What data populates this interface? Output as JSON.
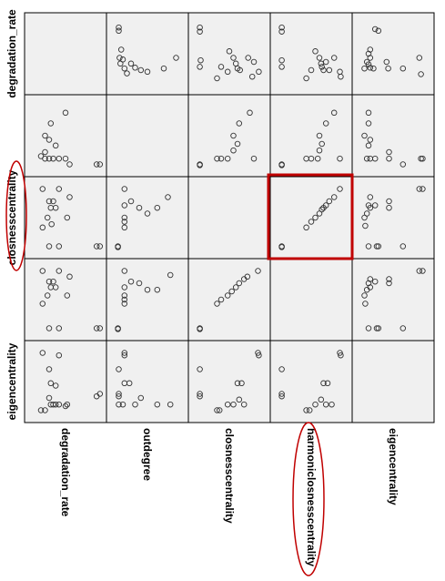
{
  "chart_data": {
    "type": "scatter-matrix",
    "row_labels": [
      "degradation_rate",
      "",
      "closnesscentrality",
      "",
      "eigencentrality"
    ],
    "col_labels": [
      "degradation_rate",
      "outdegree",
      "closnesscentrality",
      "harmoniclosnesscentrality",
      "eigencentrality"
    ],
    "grid": false,
    "background_color": "#f0f0f0",
    "point_color": "#333333",
    "highlight_color": "#c00000",
    "highlight_cell": {
      "row": 2,
      "col": 3
    },
    "circled_labels": [
      "row:closnesscentrality",
      "col:harmoniclosnesscentrality"
    ],
    "cells": [
      {
        "row": 0,
        "col": 1,
        "points": [
          [
            0.15,
            0.18
          ],
          [
            0.15,
            0.22
          ],
          [
            0.18,
            0.45
          ],
          [
            0.16,
            0.55
          ],
          [
            0.17,
            0.62
          ],
          [
            0.2,
            0.57
          ],
          [
            0.22,
            0.68
          ],
          [
            0.25,
            0.74
          ],
          [
            0.3,
            0.62
          ],
          [
            0.35,
            0.67
          ],
          [
            0.42,
            0.7
          ],
          [
            0.5,
            0.72
          ],
          [
            0.7,
            0.68
          ],
          [
            0.85,
            0.55
          ]
        ]
      },
      {
        "row": 0,
        "col": 2,
        "points": [
          [
            0.14,
            0.18
          ],
          [
            0.14,
            0.23
          ],
          [
            0.15,
            0.58
          ],
          [
            0.14,
            0.66
          ],
          [
            0.35,
            0.8
          ],
          [
            0.4,
            0.66
          ],
          [
            0.48,
            0.72
          ],
          [
            0.5,
            0.47
          ],
          [
            0.55,
            0.55
          ],
          [
            0.58,
            0.62
          ],
          [
            0.6,
            0.68
          ],
          [
            0.63,
            0.7
          ],
          [
            0.73,
            0.55
          ],
          [
            0.78,
            0.78
          ],
          [
            0.8,
            0.6
          ],
          [
            0.86,
            0.72
          ]
        ]
      },
      {
        "row": 0,
        "col": 3,
        "points": [
          [
            0.14,
            0.18
          ],
          [
            0.14,
            0.23
          ],
          [
            0.14,
            0.58
          ],
          [
            0.14,
            0.66
          ],
          [
            0.44,
            0.8
          ],
          [
            0.5,
            0.7
          ],
          [
            0.55,
            0.47
          ],
          [
            0.6,
            0.55
          ],
          [
            0.62,
            0.62
          ],
          [
            0.63,
            0.66
          ],
          [
            0.65,
            0.7
          ],
          [
            0.68,
            0.6
          ],
          [
            0.72,
            0.7
          ],
          [
            0.78,
            0.55
          ],
          [
            0.85,
            0.72
          ],
          [
            0.86,
            0.78
          ]
        ]
      },
      {
        "row": 0,
        "col": 4,
        "points": [
          [
            0.28,
            0.2
          ],
          [
            0.32,
            0.22
          ],
          [
            0.22,
            0.45
          ],
          [
            0.2,
            0.5
          ],
          [
            0.22,
            0.55
          ],
          [
            0.18,
            0.6
          ],
          [
            0.2,
            0.63
          ],
          [
            0.22,
            0.67
          ],
          [
            0.26,
            0.68
          ],
          [
            0.15,
            0.68
          ],
          [
            0.42,
            0.6
          ],
          [
            0.44,
            0.68
          ],
          [
            0.62,
            0.68
          ],
          [
            0.82,
            0.55
          ],
          [
            0.84,
            0.75
          ]
        ]
      },
      {
        "row": 1,
        "col": 0,
        "points": [
          [
            0.32,
            0.35
          ],
          [
            0.5,
            0.22
          ],
          [
            0.25,
            0.5
          ],
          [
            0.3,
            0.55
          ],
          [
            0.38,
            0.62
          ],
          [
            0.2,
            0.75
          ],
          [
            0.25,
            0.78
          ],
          [
            0.3,
            0.78
          ],
          [
            0.35,
            0.78
          ],
          [
            0.42,
            0.78
          ],
          [
            0.5,
            0.78
          ],
          [
            0.25,
            0.7
          ],
          [
            0.55,
            0.85
          ],
          [
            0.88,
            0.85
          ],
          [
            0.92,
            0.85
          ]
        ]
      },
      {
        "row": 1,
        "col": 2,
        "points": [
          [
            0.14,
            0.85
          ],
          [
            0.14,
            0.86
          ],
          [
            0.35,
            0.78
          ],
          [
            0.4,
            0.78
          ],
          [
            0.48,
            0.78
          ],
          [
            0.55,
            0.68
          ],
          [
            0.6,
            0.6
          ],
          [
            0.55,
            0.5
          ],
          [
            0.62,
            0.35
          ],
          [
            0.75,
            0.22
          ],
          [
            0.8,
            0.78
          ]
        ]
      },
      {
        "row": 1,
        "col": 3,
        "points": [
          [
            0.14,
            0.85
          ],
          [
            0.14,
            0.86
          ],
          [
            0.44,
            0.78
          ],
          [
            0.5,
            0.78
          ],
          [
            0.58,
            0.78
          ],
          [
            0.6,
            0.68
          ],
          [
            0.63,
            0.6
          ],
          [
            0.6,
            0.5
          ],
          [
            0.68,
            0.35
          ],
          [
            0.78,
            0.22
          ],
          [
            0.85,
            0.78
          ]
        ]
      },
      {
        "row": 1,
        "col": 4,
        "points": [
          [
            0.2,
            0.22
          ],
          [
            0.2,
            0.35
          ],
          [
            0.15,
            0.5
          ],
          [
            0.22,
            0.55
          ],
          [
            0.2,
            0.62
          ],
          [
            0.18,
            0.78
          ],
          [
            0.22,
            0.78
          ],
          [
            0.28,
            0.78
          ],
          [
            0.45,
            0.7
          ],
          [
            0.45,
            0.78
          ],
          [
            0.62,
            0.85
          ],
          [
            0.84,
            0.78
          ],
          [
            0.86,
            0.78
          ]
        ]
      },
      {
        "row": 2,
        "col": 0,
        "points": [
          [
            0.22,
            0.15
          ],
          [
            0.42,
            0.15
          ],
          [
            0.55,
            0.25
          ],
          [
            0.3,
            0.3
          ],
          [
            0.35,
            0.3
          ],
          [
            0.32,
            0.38
          ],
          [
            0.38,
            0.38
          ],
          [
            0.28,
            0.5
          ],
          [
            0.52,
            0.5
          ],
          [
            0.22,
            0.62
          ],
          [
            0.33,
            0.58
          ],
          [
            0.3,
            0.85
          ],
          [
            0.42,
            0.85
          ],
          [
            0.88,
            0.85
          ],
          [
            0.92,
            0.85
          ]
        ]
      },
      {
        "row": 2,
        "col": 1,
        "points": [
          [
            0.22,
            0.15
          ],
          [
            0.3,
            0.3
          ],
          [
            0.22,
            0.35
          ],
          [
            0.4,
            0.38
          ],
          [
            0.22,
            0.5
          ],
          [
            0.22,
            0.55
          ],
          [
            0.22,
            0.62
          ],
          [
            0.5,
            0.45
          ],
          [
            0.62,
            0.38
          ],
          [
            0.75,
            0.25
          ],
          [
            0.14,
            0.85
          ],
          [
            0.14,
            0.86
          ]
        ]
      },
      {
        "row": 2,
        "col": 3,
        "points": [
          [
            0.14,
            0.85
          ],
          [
            0.14,
            0.86
          ],
          [
            0.44,
            0.62
          ],
          [
            0.5,
            0.55
          ],
          [
            0.55,
            0.5
          ],
          [
            0.6,
            0.45
          ],
          [
            0.63,
            0.4
          ],
          [
            0.65,
            0.38
          ],
          [
            0.68,
            0.35
          ],
          [
            0.72,
            0.3
          ],
          [
            0.78,
            0.25
          ],
          [
            0.85,
            0.15
          ]
        ]
      },
      {
        "row": 2,
        "col": 4,
        "points": [
          [
            0.22,
            0.25
          ],
          [
            0.2,
            0.35
          ],
          [
            0.22,
            0.38
          ],
          [
            0.18,
            0.45
          ],
          [
            0.15,
            0.5
          ],
          [
            0.16,
            0.6
          ],
          [
            0.28,
            0.35
          ],
          [
            0.45,
            0.3
          ],
          [
            0.45,
            0.38
          ],
          [
            0.2,
            0.85
          ],
          [
            0.3,
            0.85
          ],
          [
            0.32,
            0.85
          ],
          [
            0.62,
            0.85
          ],
          [
            0.82,
            0.15
          ],
          [
            0.86,
            0.15
          ]
        ]
      },
      {
        "row": 3,
        "col": 0,
        "points": [
          [
            0.22,
            0.15
          ],
          [
            0.42,
            0.15
          ],
          [
            0.55,
            0.22
          ],
          [
            0.3,
            0.28
          ],
          [
            0.35,
            0.28
          ],
          [
            0.32,
            0.35
          ],
          [
            0.38,
            0.35
          ],
          [
            0.28,
            0.45
          ],
          [
            0.52,
            0.45
          ],
          [
            0.22,
            0.55
          ],
          [
            0.3,
            0.85
          ],
          [
            0.42,
            0.85
          ],
          [
            0.88,
            0.85
          ],
          [
            0.92,
            0.85
          ]
        ]
      },
      {
        "row": 3,
        "col": 1,
        "points": [
          [
            0.22,
            0.15
          ],
          [
            0.3,
            0.28
          ],
          [
            0.22,
            0.35
          ],
          [
            0.4,
            0.3
          ],
          [
            0.22,
            0.45
          ],
          [
            0.22,
            0.5
          ],
          [
            0.22,
            0.55
          ],
          [
            0.5,
            0.38
          ],
          [
            0.62,
            0.38
          ],
          [
            0.78,
            0.2
          ],
          [
            0.14,
            0.85
          ],
          [
            0.14,
            0.86
          ]
        ]
      },
      {
        "row": 3,
        "col": 2,
        "points": [
          [
            0.14,
            0.85
          ],
          [
            0.14,
            0.86
          ],
          [
            0.35,
            0.55
          ],
          [
            0.4,
            0.5
          ],
          [
            0.48,
            0.45
          ],
          [
            0.53,
            0.4
          ],
          [
            0.58,
            0.35
          ],
          [
            0.62,
            0.3
          ],
          [
            0.68,
            0.25
          ],
          [
            0.72,
            0.22
          ],
          [
            0.85,
            0.15
          ]
        ]
      },
      {
        "row": 3,
        "col": 4,
        "points": [
          [
            0.22,
            0.25
          ],
          [
            0.2,
            0.3
          ],
          [
            0.22,
            0.35
          ],
          [
            0.18,
            0.38
          ],
          [
            0.15,
            0.45
          ],
          [
            0.16,
            0.55
          ],
          [
            0.28,
            0.28
          ],
          [
            0.45,
            0.25
          ],
          [
            0.45,
            0.3
          ],
          [
            0.2,
            0.85
          ],
          [
            0.3,
            0.85
          ],
          [
            0.32,
            0.85
          ],
          [
            0.62,
            0.85
          ],
          [
            0.82,
            0.15
          ],
          [
            0.86,
            0.15
          ]
        ]
      },
      {
        "row": 4,
        "col": 0,
        "points": [
          [
            0.22,
            0.15
          ],
          [
            0.42,
            0.18
          ],
          [
            0.3,
            0.35
          ],
          [
            0.32,
            0.52
          ],
          [
            0.38,
            0.55
          ],
          [
            0.3,
            0.7
          ],
          [
            0.32,
            0.78
          ],
          [
            0.35,
            0.78
          ],
          [
            0.38,
            0.78
          ],
          [
            0.42,
            0.78
          ],
          [
            0.25,
            0.85
          ],
          [
            0.2,
            0.85
          ],
          [
            0.5,
            0.8
          ],
          [
            0.52,
            0.78
          ],
          [
            0.88,
            0.68
          ],
          [
            0.92,
            0.65
          ]
        ]
      },
      {
        "row": 4,
        "col": 1,
        "points": [
          [
            0.22,
            0.15
          ],
          [
            0.22,
            0.18
          ],
          [
            0.15,
            0.35
          ],
          [
            0.22,
            0.52
          ],
          [
            0.28,
            0.52
          ],
          [
            0.15,
            0.65
          ],
          [
            0.15,
            0.68
          ],
          [
            0.2,
            0.78
          ],
          [
            0.15,
            0.78
          ],
          [
            0.35,
            0.78
          ],
          [
            0.42,
            0.7
          ],
          [
            0.62,
            0.78
          ],
          [
            0.78,
            0.78
          ]
        ]
      },
      {
        "row": 4,
        "col": 2,
        "points": [
          [
            0.14,
            0.35
          ],
          [
            0.14,
            0.65
          ],
          [
            0.14,
            0.68
          ],
          [
            0.35,
            0.85
          ],
          [
            0.38,
            0.85
          ],
          [
            0.48,
            0.78
          ],
          [
            0.55,
            0.78
          ],
          [
            0.6,
            0.52
          ],
          [
            0.65,
            0.52
          ],
          [
            0.62,
            0.72
          ],
          [
            0.68,
            0.78
          ],
          [
            0.85,
            0.15
          ],
          [
            0.86,
            0.18
          ]
        ]
      },
      {
        "row": 4,
        "col": 3,
        "points": [
          [
            0.14,
            0.35
          ],
          [
            0.14,
            0.65
          ],
          [
            0.14,
            0.68
          ],
          [
            0.44,
            0.85
          ],
          [
            0.48,
            0.85
          ],
          [
            0.55,
            0.78
          ],
          [
            0.62,
            0.72
          ],
          [
            0.65,
            0.52
          ],
          [
            0.7,
            0.52
          ],
          [
            0.68,
            0.78
          ],
          [
            0.75,
            0.78
          ],
          [
            0.85,
            0.15
          ],
          [
            0.86,
            0.18
          ]
        ]
      }
    ]
  }
}
